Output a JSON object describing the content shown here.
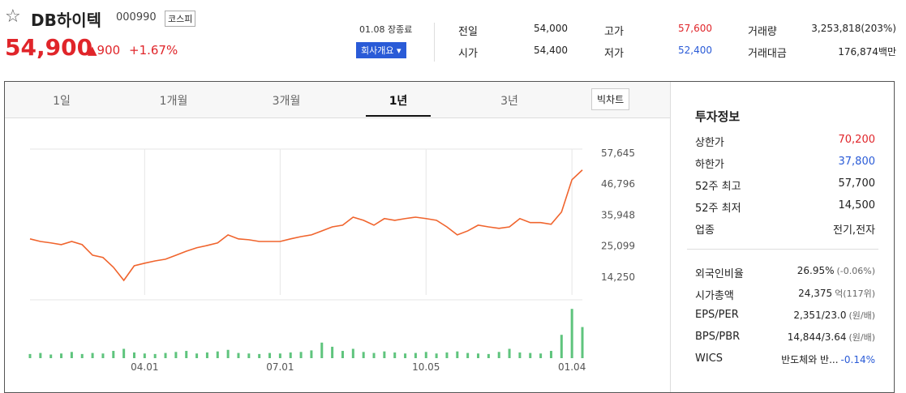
{
  "header": {
    "name": "DB하이텍",
    "code": "000990",
    "market": "코스피",
    "price": "54,900",
    "change": "900",
    "change_pct": "+1.67%",
    "status": "01.08 장종료",
    "company_button": "회사개요"
  },
  "stats": [
    {
      "label": "전일",
      "value": "54,000"
    },
    {
      "label": "고가",
      "value": "57,600"
    },
    {
      "label": "거래량",
      "value": "3,253,818(203%)"
    },
    {
      "label": "시가",
      "value": "54,400"
    },
    {
      "label": "저가",
      "value": "52,400"
    },
    {
      "label": "거래대금",
      "value": "176,874백만"
    }
  ],
  "tabs": [
    "1일",
    "1개월",
    "3개월",
    "1년",
    "3년"
  ],
  "big_chart": "빅차트",
  "chart_data": [
    {
      "type": "line",
      "color": "#f0642d",
      "categories": [
        null,
        null,
        null,
        null,
        null,
        null,
        null,
        null,
        null,
        null,
        null,
        "04.01",
        null,
        null,
        null,
        null,
        null,
        null,
        null,
        null,
        null,
        null,
        null,
        null,
        "07.01",
        null,
        null,
        null,
        null,
        null,
        null,
        null,
        null,
        null,
        null,
        null,
        null,
        null,
        "10.05",
        null,
        null,
        null,
        null,
        null,
        null,
        null,
        null,
        null,
        null,
        null,
        null,
        null,
        "01.04",
        null
      ],
      "values": [
        27600,
        26700,
        26200,
        25600,
        26700,
        25600,
        21900,
        21100,
        17700,
        13100,
        18200,
        19100,
        19900,
        20500,
        21900,
        23300,
        24500,
        25300,
        26200,
        29000,
        27600,
        27300,
        26700,
        26700,
        26700,
        27600,
        28400,
        29000,
        30400,
        31800,
        32400,
        35200,
        34100,
        32400,
        34700,
        34100,
        34700,
        35200,
        34700,
        34100,
        31800,
        29000,
        30400,
        32400,
        31800,
        31300,
        31800,
        34700,
        33300,
        33300,
        32700,
        37000,
        48300,
        51700
      ],
      "ylim": [
        8000,
        59000
      ],
      "yticks": [
        {
          "value": 57645,
          "label": "57,645"
        },
        {
          "value": 46796,
          "label": "46,796"
        },
        {
          "value": 35948,
          "label": "35,948"
        },
        {
          "value": 25099,
          "label": "25,099"
        },
        {
          "value": 14250,
          "label": "14,250"
        }
      ]
    },
    {
      "type": "bar",
      "color": "#5fc47d",
      "values": [
        8,
        10,
        7,
        9,
        12,
        8,
        10,
        9,
        14,
        18,
        11,
        9,
        8,
        10,
        12,
        14,
        9,
        11,
        13,
        16,
        10,
        9,
        8,
        10,
        9,
        11,
        12,
        15,
        30,
        22,
        14,
        18,
        12,
        10,
        13,
        11,
        9,
        10,
        12,
        9,
        11,
        13,
        10,
        9,
        8,
        12,
        18,
        11,
        10,
        9,
        14,
        45,
        95,
        60
      ],
      "ylim": [
        0,
        100
      ]
    }
  ],
  "sidebar": {
    "title": "투자정보",
    "rows": [
      {
        "label": "상한가",
        "value": "70,200"
      },
      {
        "label": "하한가",
        "value": "37,800"
      },
      {
        "label": "52주 최고",
        "value": "57,700"
      },
      {
        "label": "52주 최저",
        "value": "14,500"
      },
      {
        "label": "업종",
        "value": "전기,전자"
      }
    ],
    "rows2": [
      {
        "label": "외국인비율",
        "value": "26.95%",
        "sub": "(-0.06%)"
      },
      {
        "label": "시가총액",
        "value": "24,375",
        "sub": "억(117위)"
      },
      {
        "label": "EPS/PER",
        "value": "2,351/23.0",
        "sub": "(원/배)"
      },
      {
        "label": "BPS/PBR",
        "value": "14,844/3.64",
        "sub": "(원/배)"
      },
      {
        "label": "WICS",
        "value": "반도체와 반...",
        "sub": "-0.14%"
      }
    ]
  }
}
